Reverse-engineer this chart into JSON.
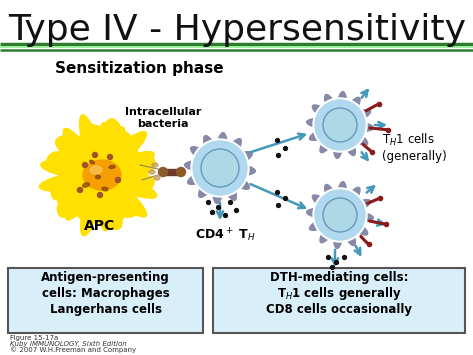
{
  "title": "Type IV - Hypersensitivity",
  "title_color": "#111111",
  "title_fontsize": 26,
  "bg_color": "#ffffff",
  "header_line_color1": "#2E7D2E",
  "header_line_color2": "#90EE90",
  "subtitle": "Sensitization phase",
  "subtitle_fontsize": 11,
  "label_APC": "APC",
  "label_bacteria": "Intracellular\nbacteria",
  "label_cd4": "CD4$^+$ T$_H$",
  "label_th1": "T$_H$1 cells\n(generally)",
  "box1_lines": [
    "Antigen-presenting",
    "cells: Macrophages",
    "Langerhans cells"
  ],
  "box2_lines": [
    "DTH-mediating cells:",
    "T$_H$1 cells generally",
    "CD8 cells occasionally"
  ],
  "caption1": "Figure 15-17a",
  "caption2": "Kuby IMMUNOLOGY, Sixth Edition",
  "caption3": "© 2007 W.H.Freeman and Company",
  "apc_color": "#FFE000",
  "apc_nucleus_color": "#F5A000",
  "cell_fill": "#B8DFF0",
  "cell_inner": "#87CEEB",
  "cell_border_color": "#9090B0",
  "box_fill": "#D8EEF8",
  "box_border": "#555555",
  "arrow_color": "#4499BB",
  "dot_color": "#111111",
  "red_detail_color": "#8B1A1A"
}
